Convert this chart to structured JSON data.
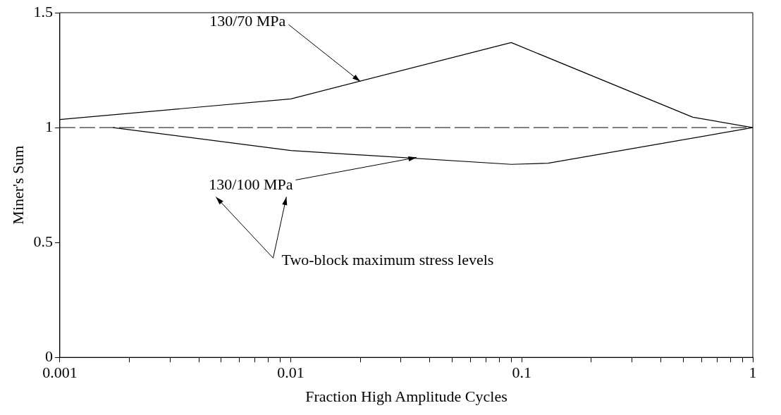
{
  "chart_data": {
    "type": "line",
    "xlabel": "Fraction High Amplitude Cycles",
    "ylabel": "Miner's Sum",
    "log": "x",
    "xlim": [
      0.001,
      1
    ],
    "ylim": [
      0,
      1.5
    ],
    "xticks": [
      {
        "value": 0.001,
        "label": "0.001"
      },
      {
        "value": 0.002,
        "label": null
      },
      {
        "value": 0.003,
        "label": null
      },
      {
        "value": 0.004,
        "label": null
      },
      {
        "value": 0.005,
        "label": null
      },
      {
        "value": 0.006,
        "label": null
      },
      {
        "value": 0.007,
        "label": null
      },
      {
        "value": 0.008,
        "label": null
      },
      {
        "value": 0.009,
        "label": null
      },
      {
        "value": 0.01,
        "label": "0.01"
      },
      {
        "value": 0.02,
        "label": null
      },
      {
        "value": 0.03,
        "label": null
      },
      {
        "value": 0.04,
        "label": null
      },
      {
        "value": 0.05,
        "label": null
      },
      {
        "value": 0.06,
        "label": null
      },
      {
        "value": 0.07,
        "label": null
      },
      {
        "value": 0.08,
        "label": null
      },
      {
        "value": 0.09,
        "label": null
      },
      {
        "value": 0.1,
        "label": "0.1"
      },
      {
        "value": 0.2,
        "label": null
      },
      {
        "value": 0.3,
        "label": null
      },
      {
        "value": 0.4,
        "label": null
      },
      {
        "value": 0.5,
        "label": null
      },
      {
        "value": 0.6,
        "label": null
      },
      {
        "value": 0.7,
        "label": null
      },
      {
        "value": 0.8,
        "label": null
      },
      {
        "value": 0.9,
        "label": null
      },
      {
        "value": 1,
        "label": "1"
      }
    ],
    "yticks": [
      0,
      0.5,
      1,
      1.5
    ],
    "series": [
      {
        "color": "#000000",
        "x": [
          0.001,
          0.01,
          0.09,
          0.55,
          1
        ],
        "values": [
          1.035,
          1.125,
          1.37,
          1.045,
          1.0
        ]
      },
      {
        "color": "#000000",
        "x": [
          0.0017,
          0.01,
          0.09,
          0.13,
          1
        ],
        "values": [
          1.0,
          0.9,
          0.84,
          0.845,
          1.0
        ]
      }
    ],
    "ref_lines": [
      {
        "axis": "y",
        "value": 1,
        "color": "#000000",
        "line_style": "dashed"
      }
    ],
    "annotations": [
      {
        "text": "130/70 MPa",
        "x": 0.02,
        "y": 1.2
      },
      {
        "text": "130/100 MPa",
        "x": 0.035,
        "y": 0.87
      },
      "Two-block maximum stress levels"
    ],
    "grid": false,
    "legend": false,
    "marker": "none",
    "line_style": "solid"
  }
}
